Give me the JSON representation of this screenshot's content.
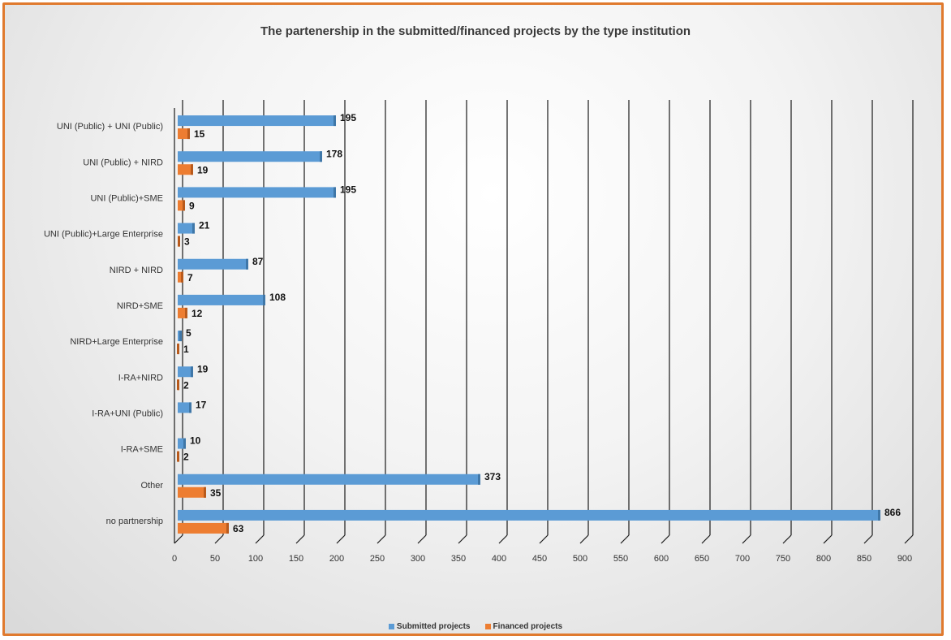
{
  "chart_data": {
    "type": "bar",
    "orientation": "horizontal",
    "title": "The partenership in the submitted/financed projects by the type institution",
    "categories": [
      "UNI (Public) + UNI (Public)",
      "UNI (Public) + NIRD",
      "UNI (Public)+SME",
      "UNI (Public)+Large Enterprise",
      "NIRD + NIRD",
      "NIRD+SME",
      "NIRD+Large Enterprise",
      "I-RA+NIRD",
      "I-RA+UNI (Public)",
      "I-RA+SME",
      "Other",
      "no partnership"
    ],
    "series": [
      {
        "name": "Submitted projects",
        "color": "#5b9bd5",
        "values": [
          195,
          178,
          195,
          21,
          87,
          108,
          5,
          19,
          17,
          10,
          373,
          866
        ],
        "labels": [
          "195",
          "178",
          "195",
          "21",
          "87",
          "108",
          "5",
          "19",
          "17",
          "10",
          "373",
          "866"
        ]
      },
      {
        "name": "Financed projects",
        "color": "#ed7d31",
        "values": [
          15,
          19,
          9,
          3,
          7,
          12,
          1,
          2,
          null,
          2,
          35,
          63
        ],
        "labels": [
          "15",
          "19",
          "9",
          "3",
          "7",
          "12",
          "1",
          "2",
          "",
          "2",
          "35",
          "63"
        ]
      }
    ],
    "xlim": [
      0,
      900
    ],
    "xticks": [
      "0",
      "50",
      "100",
      "150",
      "200",
      "250",
      "300",
      "350",
      "400",
      "450",
      "500",
      "550",
      "600",
      "650",
      "700",
      "750",
      "800",
      "850",
      "900"
    ],
    "xlabel": "",
    "ylabel": "",
    "grid": true,
    "legend_position": "bottom",
    "frame_color": "#e07a2e"
  }
}
